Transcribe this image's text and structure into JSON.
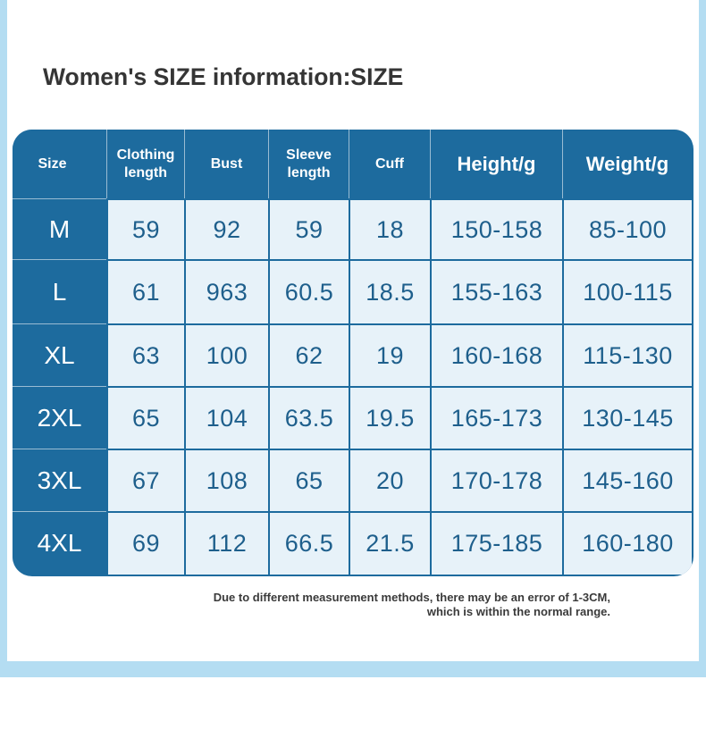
{
  "title": "Women's SIZE information:SIZE",
  "table": {
    "headers": {
      "size": "Size",
      "clothing_length": "Clothing length",
      "bust": "Bust",
      "sleeve_length": "Sleeve length",
      "cuff": "Cuff",
      "height": "Height/g",
      "weight": "Weight/g"
    },
    "rows": [
      {
        "size": "M",
        "clothing_length": "59",
        "bust": "92",
        "sleeve_length": "59",
        "cuff": "18",
        "height": "150-158",
        "weight": "85-100"
      },
      {
        "size": "L",
        "clothing_length": "61",
        "bust": "963",
        "sleeve_length": "60.5",
        "cuff": "18.5",
        "height": "155-163",
        "weight": "100-115"
      },
      {
        "size": "XL",
        "clothing_length": "63",
        "bust": "100",
        "sleeve_length": "62",
        "cuff": "19",
        "height": "160-168",
        "weight": "115-130"
      },
      {
        "size": "2XL",
        "clothing_length": "65",
        "bust": "104",
        "sleeve_length": "63.5",
        "cuff": "19.5",
        "height": "165-173",
        "weight": "130-145"
      },
      {
        "size": "3XL",
        "clothing_length": "67",
        "bust": "108",
        "sleeve_length": "65",
        "cuff": "20",
        "height": "170-178",
        "weight": "145-160"
      },
      {
        "size": "4XL",
        "clothing_length": "69",
        "bust": "112",
        "sleeve_length": "66.5",
        "cuff": "21.5",
        "height": "175-185",
        "weight": "160-180"
      }
    ]
  },
  "note": {
    "line1": "Due to different measurement methods, there may be an error of 1-3CM,",
    "line2": "which is within the normal range."
  },
  "colors": {
    "header_bg": "#1d6b9e",
    "cell_bg": "#e7f2f9",
    "cell_text": "#1e5f8c",
    "frame": "#b4ddf2",
    "title_text": "#353535"
  }
}
